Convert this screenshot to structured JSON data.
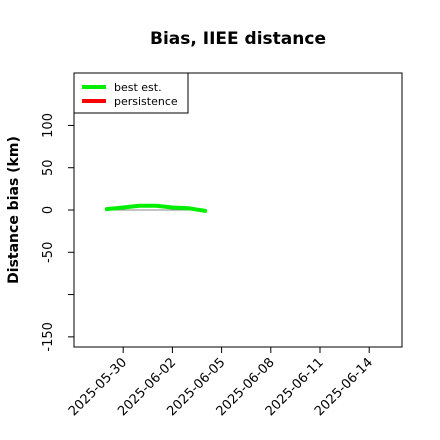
{
  "chart_data": {
    "type": "line",
    "title": "Bias, IIEE distance",
    "y_label": "Distance bias (km)",
    "x": [
      "2025-05-29",
      "2025-05-30",
      "2025-05-31",
      "2025-06-01",
      "2025-06-02",
      "2025-06-03",
      "2025-06-04"
    ],
    "series": [
      {
        "name": "best est.",
        "color": "#00ee00",
        "values": [
          1,
          3,
          5,
          5,
          3,
          2,
          -1
        ]
      },
      {
        "name": "persistence",
        "color": "#ff0000",
        "values": [
          null,
          null,
          null,
          null,
          null,
          null,
          null
        ]
      }
    ],
    "xlim": [
      "2025-05-27",
      "2025-06-16"
    ],
    "xticks": [
      "2025-05-30",
      "2025-06-02",
      "2025-06-05",
      "2025-06-08",
      "2025-06-11",
      "2025-06-14"
    ],
    "ylim": [
      -162,
      162
    ],
    "yticks": [
      -150,
      {
        "value": -100,
        "label": null
      },
      -50,
      0,
      50,
      100
    ],
    "legend": "top-left"
  }
}
